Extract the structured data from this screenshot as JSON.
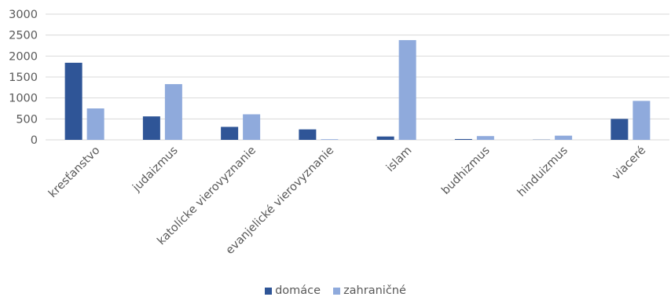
{
  "chart_data": {
    "type": "bar",
    "categories": [
      "kresťanstvo",
      "judaizmus",
      "katolícke vierovyznanie",
      "evanjelické vierovyznanie",
      "islam",
      "budhizmus",
      "hinduizmus",
      "viaceré"
    ],
    "series": [
      {
        "name": "domáce",
        "values": [
          1840,
          560,
          310,
          250,
          80,
          20,
          5,
          500
        ],
        "color": "#2F5597"
      },
      {
        "name": "zahraničné",
        "values": [
          750,
          1330,
          610,
          15,
          2380,
          90,
          100,
          930
        ],
        "color": "#8FAADC"
      }
    ],
    "yticks": [
      0,
      500,
      1000,
      1500,
      2000,
      2500,
      3000
    ],
    "ylim": [
      0,
      3000
    ],
    "grid": true,
    "legend_position": "bottom"
  }
}
